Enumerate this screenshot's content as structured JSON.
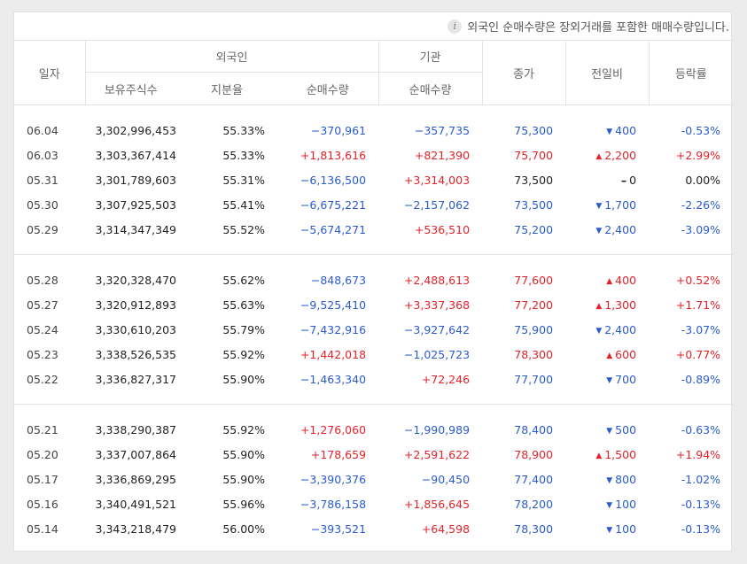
{
  "notice": "외국인 순매수량은 장외거래를 포함한 매매수량입니다.",
  "headers": {
    "date": "일자",
    "foreign": "외국인",
    "institution": "기관",
    "holdings": "보유주식수",
    "ratio": "지분율",
    "net_foreign": "순매수량",
    "net_inst": "순매수량",
    "close": "종가",
    "change": "전일비",
    "rate": "등락률"
  },
  "groups": [
    [
      {
        "date": "06.04",
        "hold": "3,302,996,453",
        "ratio": "55.33%",
        "fnet": "−370,961",
        "inet": "−357,735",
        "close": "75,300",
        "chg": "400",
        "dir": "down",
        "rate": "-0.53%"
      },
      {
        "date": "06.03",
        "hold": "3,303,367,414",
        "ratio": "55.33%",
        "fnet": "+1,813,616",
        "inet": "+821,390",
        "close": "75,700",
        "chg": "2,200",
        "dir": "up",
        "rate": "+2.99%"
      },
      {
        "date": "05.31",
        "hold": "3,301,789,603",
        "ratio": "55.31%",
        "fnet": "−6,136,500",
        "inet": "+3,314,003",
        "close": "73,500",
        "chg": "0",
        "dir": "flat",
        "rate": "0.00%"
      },
      {
        "date": "05.30",
        "hold": "3,307,925,503",
        "ratio": "55.41%",
        "fnet": "−6,675,221",
        "inet": "−2,157,062",
        "close": "73,500",
        "chg": "1,700",
        "dir": "down",
        "rate": "-2.26%"
      },
      {
        "date": "05.29",
        "hold": "3,314,347,349",
        "ratio": "55.52%",
        "fnet": "−5,674,271",
        "inet": "+536,510",
        "close": "75,200",
        "chg": "2,400",
        "dir": "down",
        "rate": "-3.09%"
      }
    ],
    [
      {
        "date": "05.28",
        "hold": "3,320,328,470",
        "ratio": "55.62%",
        "fnet": "−848,673",
        "inet": "+2,488,613",
        "close": "77,600",
        "chg": "400",
        "dir": "up",
        "rate": "+0.52%"
      },
      {
        "date": "05.27",
        "hold": "3,320,912,893",
        "ratio": "55.63%",
        "fnet": "−9,525,410",
        "inet": "+3,337,368",
        "close": "77,200",
        "chg": "1,300",
        "dir": "up",
        "rate": "+1.71%"
      },
      {
        "date": "05.24",
        "hold": "3,330,610,203",
        "ratio": "55.79%",
        "fnet": "−7,432,916",
        "inet": "−3,927,642",
        "close": "75,900",
        "chg": "2,400",
        "dir": "down",
        "rate": "-3.07%"
      },
      {
        "date": "05.23",
        "hold": "3,338,526,535",
        "ratio": "55.92%",
        "fnet": "+1,442,018",
        "inet": "−1,025,723",
        "close": "78,300",
        "chg": "600",
        "dir": "up",
        "rate": "+0.77%"
      },
      {
        "date": "05.22",
        "hold": "3,336,827,317",
        "ratio": "55.90%",
        "fnet": "−1,463,340",
        "inet": "+72,246",
        "close": "77,700",
        "chg": "700",
        "dir": "down",
        "rate": "-0.89%"
      }
    ],
    [
      {
        "date": "05.21",
        "hold": "3,338,290,387",
        "ratio": "55.92%",
        "fnet": "+1,276,060",
        "inet": "−1,990,989",
        "close": "78,400",
        "chg": "500",
        "dir": "down",
        "rate": "-0.63%"
      },
      {
        "date": "05.20",
        "hold": "3,337,007,864",
        "ratio": "55.90%",
        "fnet": "+178,659",
        "inet": "+2,591,622",
        "close": "78,900",
        "chg": "1,500",
        "dir": "up",
        "rate": "+1.94%"
      },
      {
        "date": "05.17",
        "hold": "3,336,869,295",
        "ratio": "55.90%",
        "fnet": "−3,390,376",
        "inet": "−90,450",
        "close": "77,400",
        "chg": "800",
        "dir": "down",
        "rate": "-1.02%"
      },
      {
        "date": "05.16",
        "hold": "3,340,491,521",
        "ratio": "55.96%",
        "fnet": "−3,786,158",
        "inet": "+1,856,645",
        "close": "78,200",
        "chg": "100",
        "dir": "down",
        "rate": "-0.13%"
      },
      {
        "date": "05.14",
        "hold": "3,343,218,479",
        "ratio": "56.00%",
        "fnet": "−393,521",
        "inet": "+64,598",
        "close": "78,300",
        "chg": "100",
        "dir": "down",
        "rate": "-0.13%"
      }
    ]
  ],
  "colors": {
    "up": "#e5222a",
    "down": "#2a5bd0",
    "neutral": "#222222"
  }
}
